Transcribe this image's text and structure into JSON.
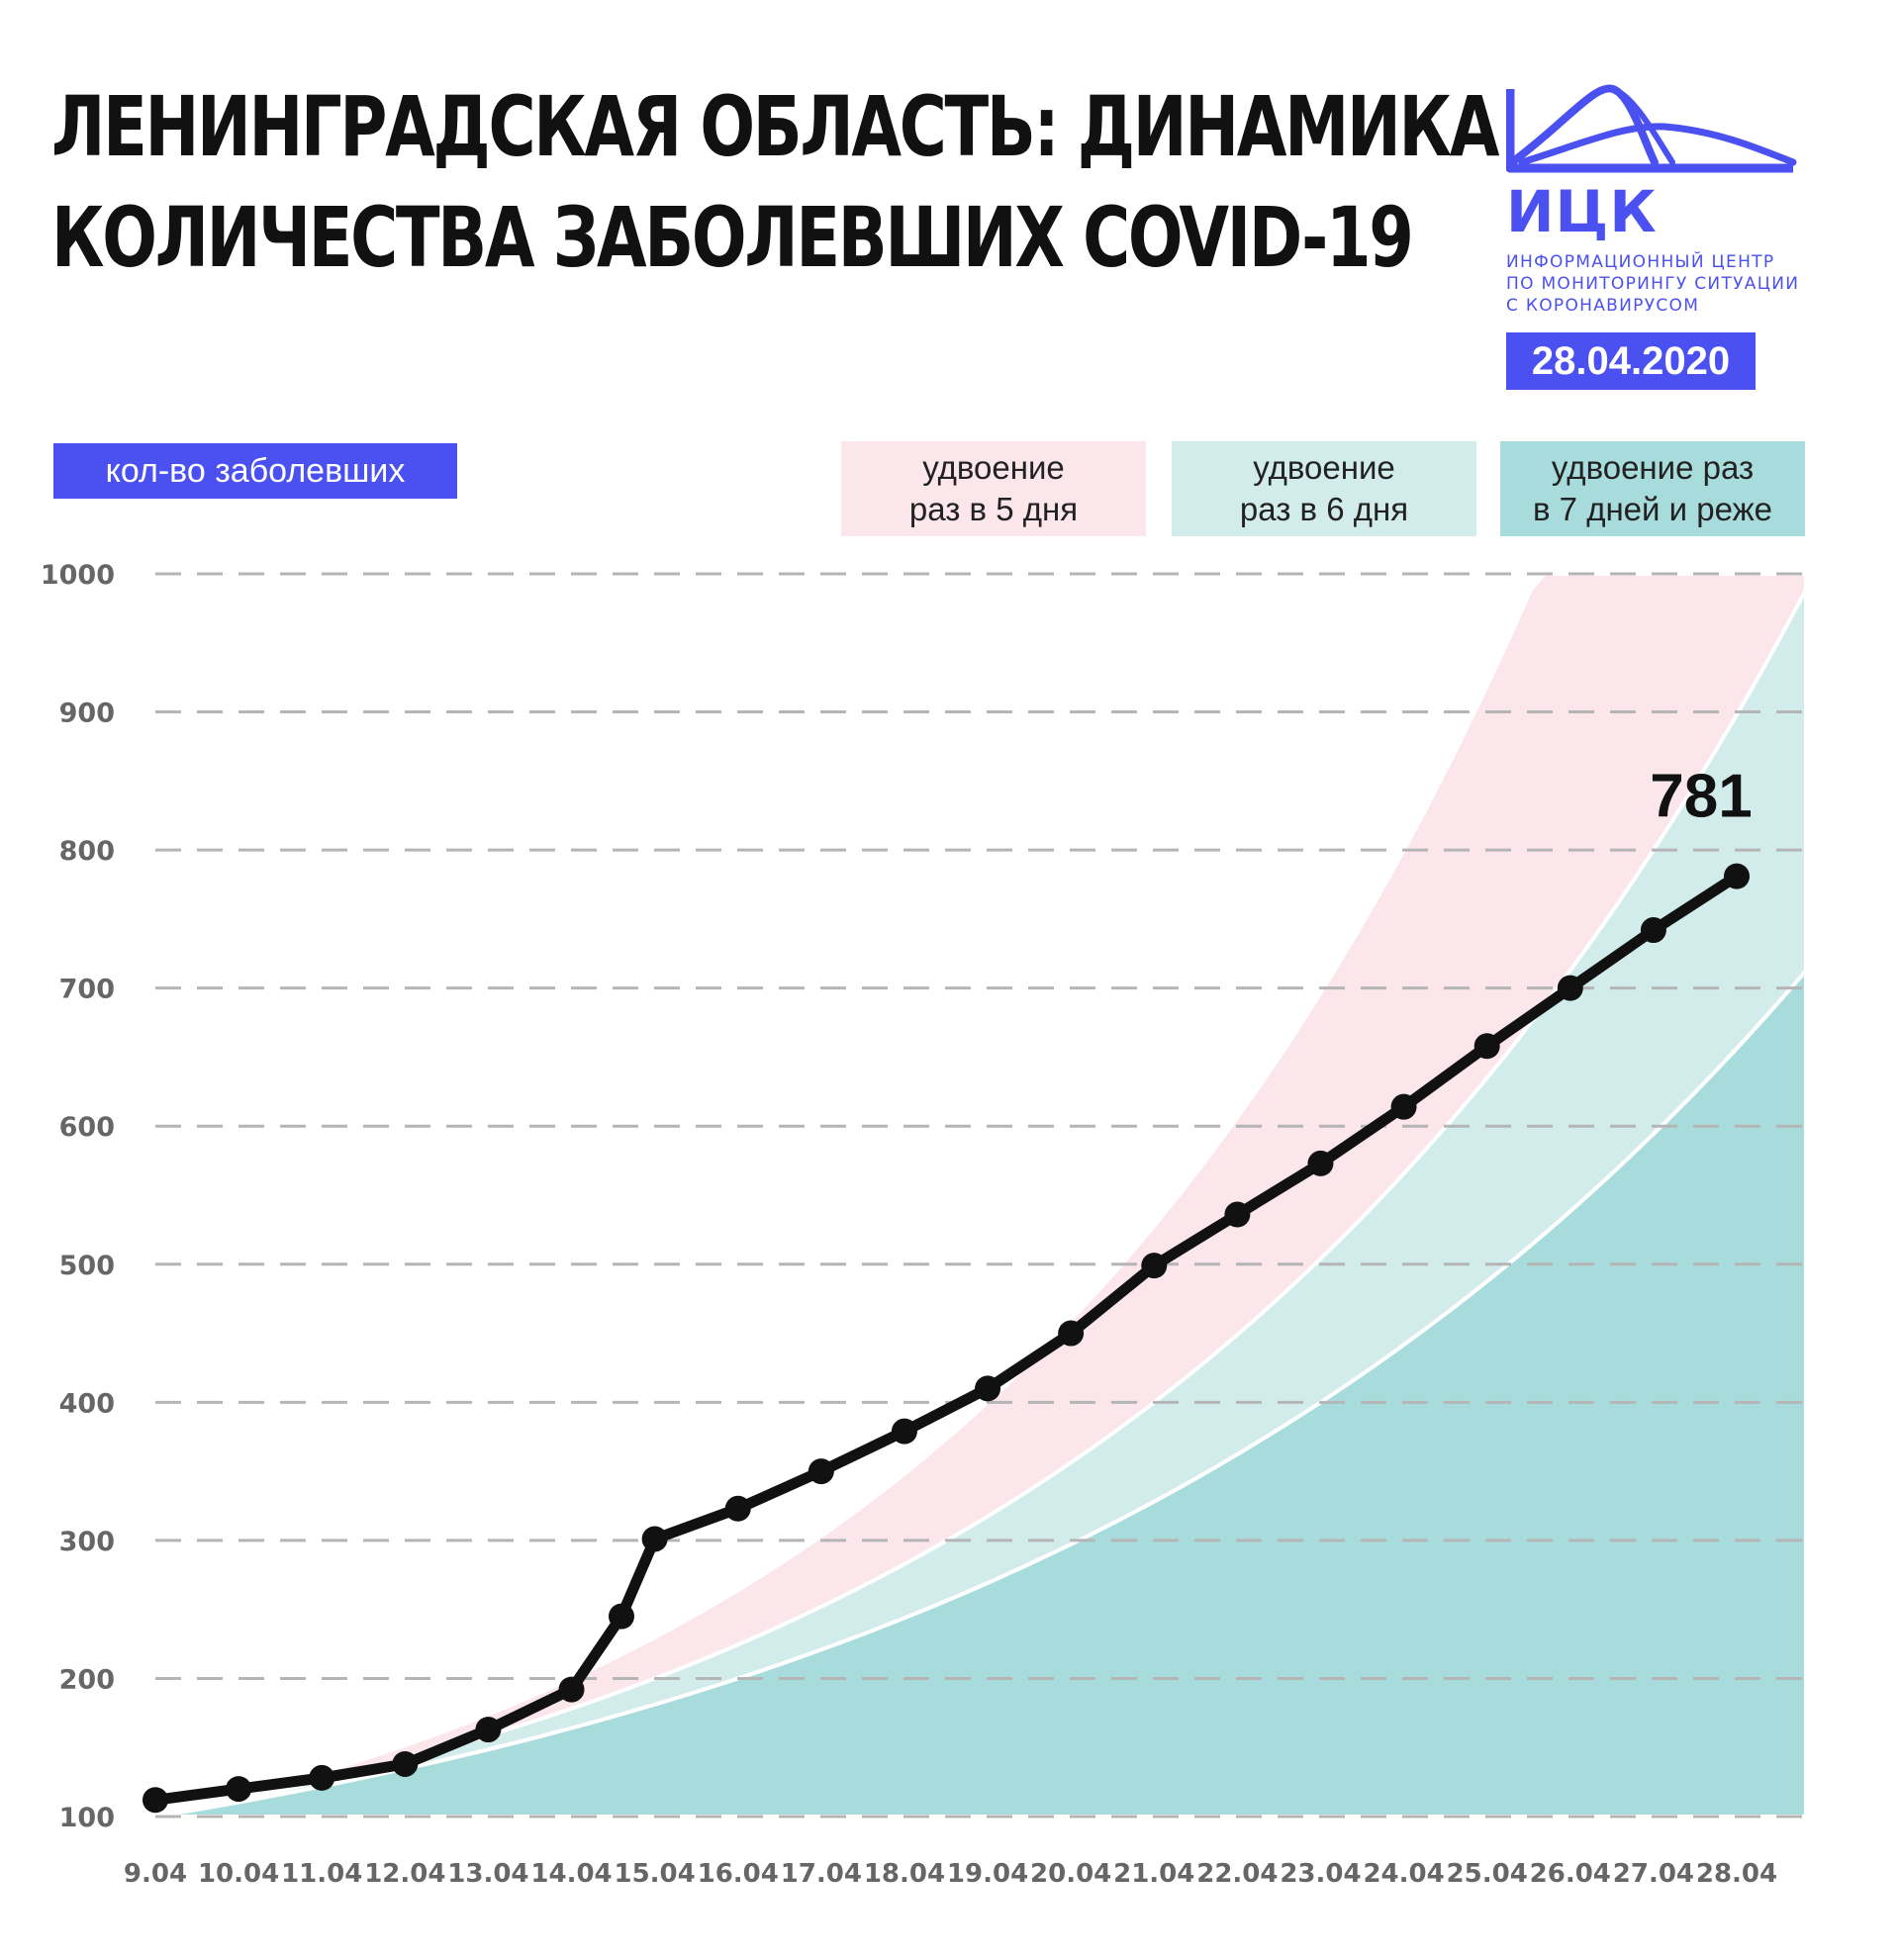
{
  "title_lines": [
    "ЛЕНИНГРАДСКАЯ ОБЛАСТЬ: ДИНАМИКА",
    "КОЛИЧЕСТВА ЗАБОЛЕВШИХ COVID-19"
  ],
  "logo": {
    "abbr": "ИЦК",
    "subtitle_lines": [
      "ИНФОРМАЦИОННЫЙ ЦЕНТР",
      "ПО МОНИТОРИНГУ СИТУАЦИИ",
      "С КОРОНАВИРУСОМ"
    ],
    "color": "#4b50f0"
  },
  "date": "28.04.2020",
  "ylabel": "кол-во заболевших",
  "legend": [
    {
      "lines": [
        "удвоение",
        "раз в 5 дня"
      ],
      "color": "#fbe6ec"
    },
    {
      "lines": [
        "удвоение",
        "раз в 6 дня"
      ],
      "color": "#d2ecec"
    },
    {
      "lines": [
        "удвоение раз",
        "в 7 дней и реже"
      ],
      "color": "#a8dcdc"
    }
  ],
  "chart_data": {
    "type": "line",
    "ylabel": "кол-во заболевших",
    "ylim": [
      100,
      1000
    ],
    "yticks": [
      100,
      200,
      300,
      400,
      500,
      600,
      700,
      800,
      900,
      1000
    ],
    "grid": "dashed horizontal",
    "categories": [
      "9.04",
      "10.04",
      "11.04",
      "12.04",
      "13.04",
      "14.04",
      "15.04",
      "16.04",
      "17.04",
      "18.04",
      "19.04",
      "20.04",
      "21.04",
      "22.04",
      "23.04",
      "24.04",
      "25.04",
      "26.04",
      "27.04",
      "28.04"
    ],
    "series": [
      {
        "values": [
          112,
          120,
          128,
          138,
          163,
          192,
          301,
          323,
          350,
          379,
          410,
          450,
          499,
          536,
          573,
          614,
          658,
          700,
          742,
          781
        ],
        "extra_points": [
          {
            "x": 14.6,
            "y": 245
          }
        ],
        "color": "#111111"
      }
    ],
    "last_value_label": "781",
    "bands": [
      {
        "doubling_days": 5,
        "base": 100,
        "color": "#fbe6ec"
      },
      {
        "doubling_days": 6,
        "base": 100,
        "color": "#d2ecec"
      },
      {
        "doubling_days": 7,
        "base": 100,
        "color": "#a8dcdc"
      }
    ]
  }
}
